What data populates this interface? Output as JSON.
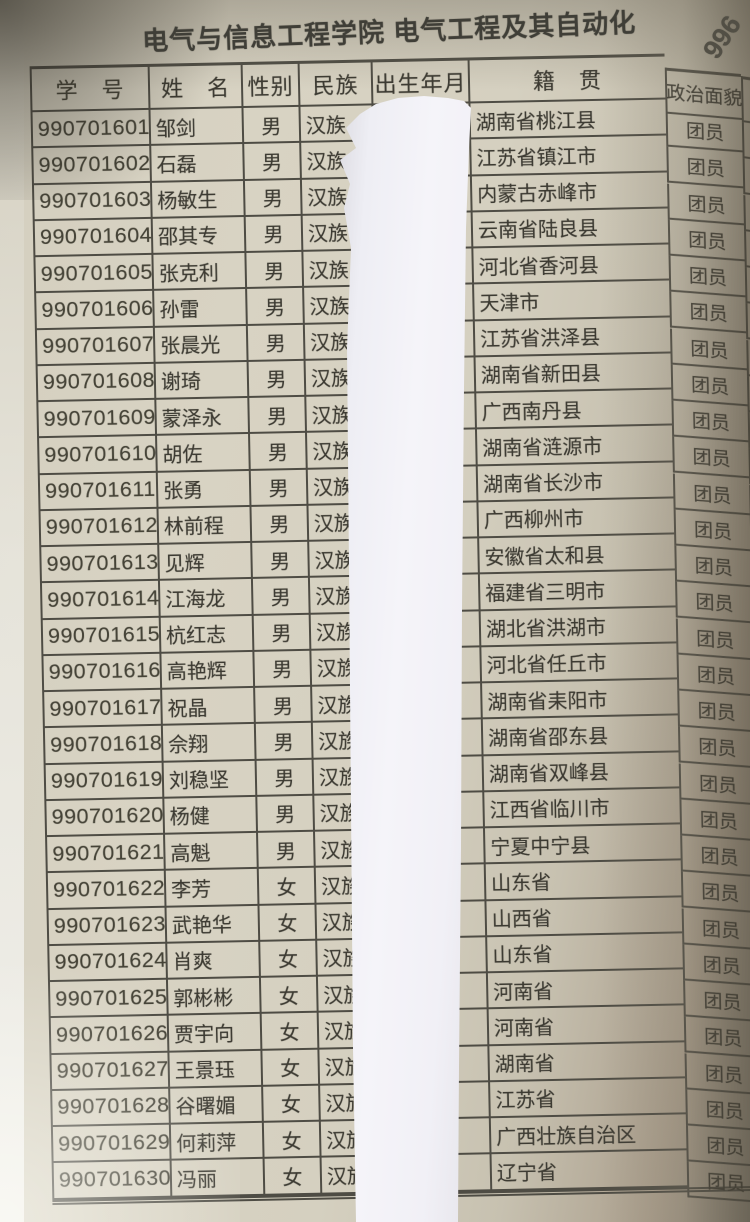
{
  "page": {
    "title": "电气与信息工程学院 电气工程及其自动化",
    "page_number": "996"
  },
  "table": {
    "headers": {
      "id": "学　号",
      "name": "姓　名",
      "gender": "性别",
      "ethnicity": "民族",
      "birth_date": "出生年月",
      "hometown": "籍　贯",
      "political_status": "政治面貌"
    },
    "rows": [
      {
        "id": "990701601",
        "name": "邹剑",
        "gender": "男",
        "ethnicity": "汉族",
        "hometown": "湖南省桃江县",
        "political": "团员"
      },
      {
        "id": "990701602",
        "name": "石磊",
        "gender": "男",
        "ethnicity": "汉族",
        "hometown": "江苏省镇江市",
        "political": "团员"
      },
      {
        "id": "990701603",
        "name": "杨敏生",
        "gender": "男",
        "ethnicity": "汉族",
        "hometown": "内蒙古赤峰市",
        "political": "团员"
      },
      {
        "id": "990701604",
        "name": "邵其专",
        "gender": "男",
        "ethnicity": "汉族",
        "hometown": "云南省陆良县",
        "political": "团员"
      },
      {
        "id": "990701605",
        "name": "张克利",
        "gender": "男",
        "ethnicity": "汉族",
        "hometown": "河北省香河县",
        "political": "团员"
      },
      {
        "id": "990701606",
        "name": "孙雷",
        "gender": "男",
        "ethnicity": "汉族",
        "hometown": "天津市",
        "political": "团员"
      },
      {
        "id": "990701607",
        "name": "张晨光",
        "gender": "男",
        "ethnicity": "汉族",
        "hometown": "江苏省洪泽县",
        "political": "团员"
      },
      {
        "id": "990701608",
        "name": "谢琦",
        "gender": "男",
        "ethnicity": "汉族",
        "hometown": "湖南省新田县",
        "political": "团员"
      },
      {
        "id": "990701609",
        "name": "蒙泽永",
        "gender": "男",
        "ethnicity": "汉族",
        "hometown": "广西南丹县",
        "political": "团员"
      },
      {
        "id": "990701610",
        "name": "胡佐",
        "gender": "男",
        "ethnicity": "汉族",
        "hometown": "湖南省涟源市",
        "political": "团员"
      },
      {
        "id": "990701611",
        "name": "张勇",
        "gender": "男",
        "ethnicity": "汉族",
        "hometown": "湖南省长沙市",
        "political": "团员"
      },
      {
        "id": "990701612",
        "name": "林前程",
        "gender": "男",
        "ethnicity": "汉族",
        "hometown": "广西柳州市",
        "political": "团员"
      },
      {
        "id": "990701613",
        "name": "见辉",
        "gender": "男",
        "ethnicity": "汉族",
        "hometown": "安徽省太和县",
        "political": "团员"
      },
      {
        "id": "990701614",
        "name": "江海龙",
        "gender": "男",
        "ethnicity": "汉族",
        "hometown": "福建省三明市",
        "political": "团员"
      },
      {
        "id": "990701615",
        "name": "杭红志",
        "gender": "男",
        "ethnicity": "汉族",
        "hometown": "湖北省洪湖市",
        "political": "团员"
      },
      {
        "id": "990701616",
        "name": "高艳辉",
        "gender": "男",
        "ethnicity": "汉族",
        "hometown": "河北省任丘市",
        "political": "团员"
      },
      {
        "id": "990701617",
        "name": "祝晶",
        "gender": "男",
        "ethnicity": "汉族",
        "hometown": "湖南省耒阳市",
        "political": "团员"
      },
      {
        "id": "990701618",
        "name": "佘翔",
        "gender": "男",
        "ethnicity": "汉族",
        "hometown": "湖南省邵东县",
        "political": "团员"
      },
      {
        "id": "990701619",
        "name": "刘稳坚",
        "gender": "男",
        "ethnicity": "汉族",
        "hometown": "湖南省双峰县",
        "political": "团员"
      },
      {
        "id": "990701620",
        "name": "杨健",
        "gender": "男",
        "ethnicity": "汉族",
        "hometown": "江西省临川市",
        "political": "团员"
      },
      {
        "id": "990701621",
        "name": "高魁",
        "gender": "男",
        "ethnicity": "汉族",
        "hometown": "宁夏中宁县",
        "political": "团员"
      },
      {
        "id": "990701622",
        "name": "李芳",
        "gender": "女",
        "ethnicity": "汉族",
        "hometown": "山东省",
        "political": "团员"
      },
      {
        "id": "990701623",
        "name": "武艳华",
        "gender": "女",
        "ethnicity": "汉族",
        "hometown": "山西省",
        "political": "团员"
      },
      {
        "id": "990701624",
        "name": "肖爽",
        "gender": "女",
        "ethnicity": "汉族",
        "hometown": "山东省",
        "political": "团员"
      },
      {
        "id": "990701625",
        "name": "郭彬彬",
        "gender": "女",
        "ethnicity": "汉族",
        "hometown": "河南省",
        "political": "团员"
      },
      {
        "id": "990701626",
        "name": "贾宇向",
        "gender": "女",
        "ethnicity": "汉族",
        "hometown": "河南省",
        "political": "团员"
      },
      {
        "id": "990701627",
        "name": "王景珏",
        "gender": "女",
        "ethnicity": "汉族",
        "hometown": "湖南省",
        "political": "团员"
      },
      {
        "id": "990701628",
        "name": "谷曙媚",
        "gender": "女",
        "ethnicity": "汉族",
        "hometown": "江苏省",
        "political": "团员"
      },
      {
        "id": "990701629",
        "name": "何莉萍",
        "gender": "女",
        "ethnicity": "汉族",
        "hometown": "广西壮族自治区",
        "political": "团员"
      },
      {
        "id": "990701630",
        "name": "冯丽",
        "gender": "女",
        "ethnicity": "汉族",
        "hometown": "辽宁省",
        "political": "团员"
      }
    ]
  }
}
